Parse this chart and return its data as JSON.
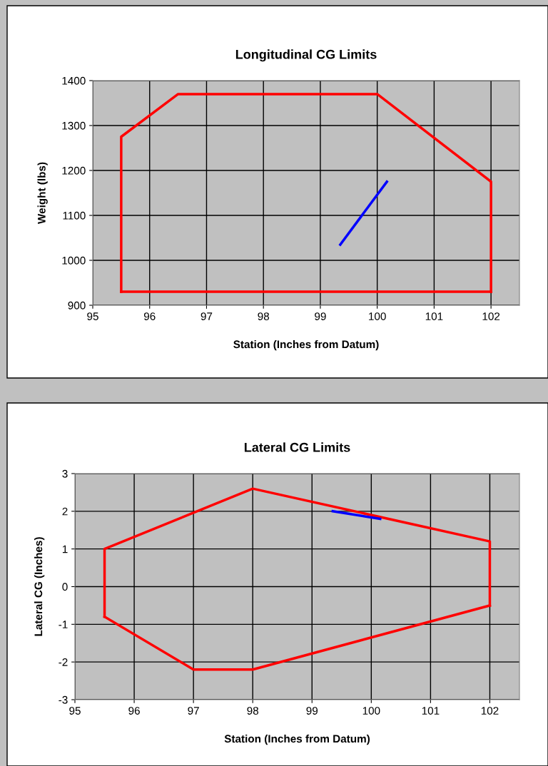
{
  "chart_data": [
    {
      "type": "line",
      "title": "Longitudinal CG Limits",
      "xlabel": "Station (Inches from Datum)",
      "ylabel": "Weight (lbs)",
      "xlim": [
        95,
        102.5
      ],
      "xticks": [
        95,
        96,
        97,
        98,
        99,
        100,
        101,
        102
      ],
      "ylim": [
        900,
        1400
      ],
      "yticks": [
        900,
        1000,
        1100,
        1200,
        1300,
        1400
      ],
      "grid": true,
      "marker": "none",
      "line_style": "solid",
      "series": [
        {
          "color": "#ff0000",
          "x": [
            95.5,
            95.5,
            96.5,
            100,
            102,
            102
          ],
          "values": [
            930,
            1275,
            1370,
            1370,
            1175,
            930
          ]
        },
        {
          "color": "#ff0000",
          "x": [
            95.5,
            102
          ],
          "values": [
            930,
            930
          ]
        },
        {
          "color": "#0000ff",
          "x": [
            99.35,
            100.17
          ],
          "values": [
            1035,
            1175
          ]
        }
      ]
    },
    {
      "type": "line",
      "title": "Lateral CG Limits",
      "xlabel": "Station (Inches from Datum)",
      "ylabel": "Lateral CG (Inches)",
      "xlim": [
        95,
        102.5
      ],
      "xticks": [
        95,
        96,
        97,
        98,
        99,
        100,
        101,
        102
      ],
      "ylim": [
        -3,
        3
      ],
      "yticks": [
        -3,
        -2,
        -1,
        0,
        1,
        2,
        3
      ],
      "grid": true,
      "marker": "none",
      "line_style": "solid",
      "series": [
        {
          "color": "#ff0000",
          "x": [
            95.5,
            95.5,
            98,
            102,
            102
          ],
          "values": [
            -0.8,
            1,
            2.6,
            1.2,
            -0.5
          ]
        },
        {
          "color": "#ff0000",
          "x": [
            95.5,
            97,
            98,
            102
          ],
          "values": [
            -0.8,
            -2.2,
            -2.2,
            -0.5
          ]
        },
        {
          "color": "#0000ff",
          "x": [
            99.35,
            100.15
          ],
          "values": [
            2.0,
            1.8
          ]
        }
      ]
    }
  ]
}
